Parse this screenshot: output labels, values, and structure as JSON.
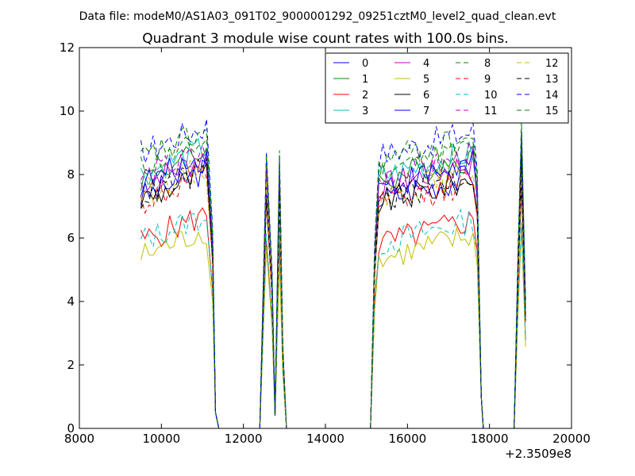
{
  "figure": {
    "suptitle": "Data file: modeM0/AS1A03_091T02_9000001292_09251cztM0_level2_quad_clean.evt",
    "title": "Quadrant 3 module wise count rates with 100.0s bins.",
    "offset_label": "+2.3509e8"
  },
  "chart_data": {
    "type": "line",
    "title": "Quadrant 3 module wise count rates with 100.0s bins.",
    "xlabel": "",
    "ylabel": "",
    "xlim": [
      8000,
      20000
    ],
    "ylim": [
      0,
      12
    ],
    "x_offset": 235090000,
    "xticks": [
      8000,
      10000,
      12000,
      14000,
      16000,
      18000,
      20000
    ],
    "yticks": [
      0,
      2,
      4,
      6,
      8,
      10,
      12
    ],
    "grid": false,
    "legend": {
      "position": "top-right",
      "columns": 4
    },
    "series": [
      {
        "name": "0",
        "color": "#0000ff",
        "dash": "solid",
        "level": 7.6
      },
      {
        "name": "1",
        "color": "#008000",
        "dash": "solid",
        "level": 8.2
      },
      {
        "name": "2",
        "color": "#ff0000",
        "dash": "solid",
        "level": 6.2
      },
      {
        "name": "3",
        "color": "#00bfbf",
        "dash": "solid",
        "level": 8.3
      },
      {
        "name": "4",
        "color": "#bf00bf",
        "dash": "solid",
        "level": 8.0
      },
      {
        "name": "5",
        "color": "#bfbf00",
        "dash": "solid",
        "level": 5.7
      },
      {
        "name": "6",
        "color": "#000000",
        "dash": "solid",
        "level": 7.5
      },
      {
        "name": "7",
        "color": "#0000ff",
        "dash": "solid",
        "level": 8.0
      },
      {
        "name": "8",
        "color": "#008000",
        "dash": "dashed",
        "level": 8.5
      },
      {
        "name": "9",
        "color": "#ff0000",
        "dash": "dashed",
        "level": 7.4
      },
      {
        "name": "10",
        "color": "#00bfbf",
        "dash": "dashed",
        "level": 6.2
      },
      {
        "name": "11",
        "color": "#bf00bf",
        "dash": "dashed",
        "level": 8.2
      },
      {
        "name": "12",
        "color": "#bfbf00",
        "dash": "dashed",
        "level": 7.7
      },
      {
        "name": "13",
        "color": "#000000",
        "dash": "dashed",
        "level": 7.6
      },
      {
        "name": "14",
        "color": "#0000ff",
        "dash": "dashed",
        "level": 9.0
      },
      {
        "name": "15",
        "color": "#008000",
        "dash": "dashed",
        "level": 8.8
      }
    ]
  }
}
